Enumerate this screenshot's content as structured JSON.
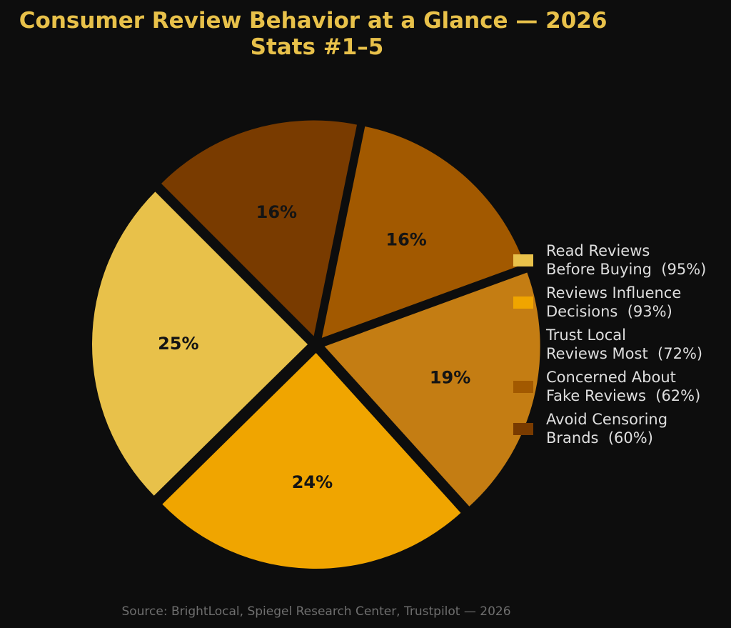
{
  "chart_data": {
    "type": "pie",
    "title_lines": [
      "Consumer Review Behavior at a Glance — 2026",
      "Stats #1–5"
    ],
    "title_color": "#e8c14a",
    "background": "#0d0d0d",
    "start_angle_deg": 135,
    "direction": "counterclockwise",
    "exploded": true,
    "slices": [
      {
        "legend_lines": [
          "Read Reviews",
          "Before Buying  (95%)"
        ],
        "value": 95,
        "percent_label": "25%",
        "color": "#e8c14a"
      },
      {
        "legend_lines": [
          "Reviews Influence",
          "Decisions  (93%)"
        ],
        "value": 93,
        "percent_label": "24%",
        "color": "#f0a500"
      },
      {
        "legend_lines": [
          "Trust Local",
          "Reviews Most  (72%)"
        ],
        "value": 72,
        "percent_label": "19%",
        "color": "#c47d13"
      },
      {
        "legend_lines": [
          "Concerned About",
          "Fake Reviews  (62%)"
        ],
        "value": 62,
        "percent_label": "16%",
        "color": "#a25900"
      },
      {
        "legend_lines": [
          "Avoid Censoring",
          "Brands  (60%)"
        ],
        "value": 60,
        "percent_label": "16%",
        "color": "#793b00"
      }
    ],
    "legend_placement": "right",
    "source": "Source: BrightLocal, Spiegel Research Center, Trustpilot — 2026",
    "source_color": "#6f6f6f"
  }
}
